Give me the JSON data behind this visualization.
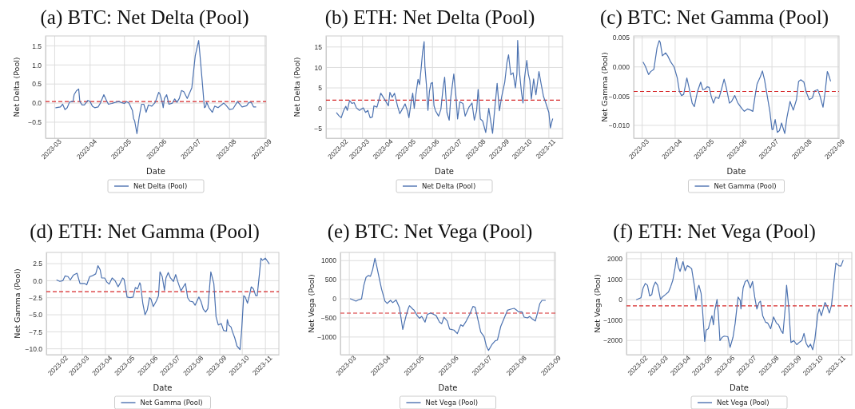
{
  "chart_data": [
    {
      "type": "line",
      "title": "(a) BTC: Net Delta (Pool)",
      "xlabel": "Date",
      "ylabel": "Net Delta (Pool)",
      "grid": true,
      "legend": "bottom",
      "xlim": [
        "2023-02-21",
        "2023-09-02"
      ],
      "ylim": [
        -0.92,
        1.76
      ],
      "xticks": [
        {
          "value": "2023-03-01",
          "label": "2023-03"
        },
        {
          "value": "2023-04-01",
          "label": "2023-04"
        },
        {
          "value": "2023-05-01",
          "label": "2023-05"
        },
        {
          "value": "2023-06-01",
          "label": "2023-06"
        },
        {
          "value": "2023-07-01",
          "label": "2023-07"
        },
        {
          "value": "2023-08-01",
          "label": "2023-08"
        },
        {
          "value": "2023-09-01",
          "label": "2023-09"
        }
      ],
      "yticks": [
        {
          "value": -0.5,
          "label": "−0.5"
        },
        {
          "value": 0,
          "label": "0.0"
        },
        {
          "value": 0.5,
          "label": "0.5"
        },
        {
          "value": 1,
          "label": "1.0"
        },
        {
          "value": 1.5,
          "label": "1.5"
        }
      ],
      "ref_lines": [
        {
          "axis": "y",
          "value": 0.04,
          "color": "#d62728",
          "line_style": "dashed"
        }
      ],
      "x": [
        "2023-03-02",
        "2023-03-06",
        "2023-03-08",
        "2023-03-10",
        "2023-03-12",
        "2023-03-14",
        "2023-03-17",
        "2023-03-18",
        "2023-03-20",
        "2023-03-22",
        "2023-03-23",
        "2023-03-25",
        "2023-03-27",
        "2023-03-30",
        "2023-04-01",
        "2023-04-03",
        "2023-04-05",
        "2023-04-08",
        "2023-04-10",
        "2023-04-13",
        "2023-04-15",
        "2023-04-17",
        "2023-04-20",
        "2023-04-23",
        "2023-04-26",
        "2023-04-29",
        "2023-05-01",
        "2023-05-03",
        "2023-05-05",
        "2023-05-08",
        "2023-05-09",
        "2023-05-10",
        "2023-05-12",
        "2023-05-13",
        "2023-05-14",
        "2023-05-16",
        "2023-05-18",
        "2023-05-20",
        "2023-05-22",
        "2023-05-25",
        "2023-05-28",
        "2023-05-31",
        "2023-06-01",
        "2023-06-03",
        "2023-06-04",
        "2023-06-05",
        "2023-06-07",
        "2023-06-09",
        "2023-06-12",
        "2023-06-14",
        "2023-06-16",
        "2023-06-18",
        "2023-06-20",
        "2023-06-22",
        "2023-06-25",
        "2023-06-29",
        "2023-07-02",
        "2023-07-05",
        "2023-07-06",
        "2023-07-08",
        "2023-07-10",
        "2023-07-11",
        "2023-07-12",
        "2023-07-14",
        "2023-07-17",
        "2023-07-19",
        "2023-07-22",
        "2023-07-27",
        "2023-07-29",
        "2023-08-01",
        "2023-08-04",
        "2023-08-08",
        "2023-08-12",
        "2023-08-16",
        "2023-08-18",
        "2023-08-20",
        "2023-08-22",
        "2023-08-24"
      ],
      "series": [
        {
          "name": "Net Delta (Pool)",
          "color": "#4c72b0",
          "values": [
            -0.12,
            -0.1,
            -0.03,
            -0.17,
            -0.12,
            0.03,
            0.04,
            0.22,
            0.32,
            0.37,
            0.04,
            -0.05,
            -0.05,
            0.07,
            0.04,
            -0.08,
            -0.12,
            -0.1,
            0.0,
            0.22,
            0.09,
            -0.03,
            -0.01,
            0.02,
            0.04,
            0.01,
            -0.01,
            0.04,
            0.0,
            -0.19,
            -0.4,
            -0.47,
            -0.8,
            -0.57,
            -0.35,
            -0.03,
            -0.03,
            -0.24,
            -0.05,
            -0.08,
            0.02,
            0.28,
            0.25,
            0.04,
            -0.12,
            0.12,
            0.22,
            -0.03,
            0.0,
            0.11,
            0.02,
            0.12,
            0.33,
            0.3,
            0.12,
            0.4,
            1.24,
            1.64,
            1.31,
            0.61,
            -0.12,
            -0.1,
            0.02,
            -0.12,
            -0.24,
            -0.08,
            -0.12,
            0.0,
            -0.06,
            -0.17,
            -0.15,
            0.04,
            -0.1,
            -0.07,
            0.02,
            0.02,
            -0.1,
            -0.1
          ]
        }
      ]
    },
    {
      "type": "line",
      "title": "(b) ETH: Net Delta (Pool)",
      "xlabel": "Date",
      "ylabel": "Net Delta (Pool)",
      "grid": true,
      "legend": "bottom",
      "xlim": [
        "2023-01-12",
        "2023-11-19"
      ],
      "ylim": [
        -7.3,
        17.7
      ],
      "xticks": [
        {
          "value": "2023-02-01",
          "label": "2023-02"
        },
        {
          "value": "2023-03-01",
          "label": "2023-03"
        },
        {
          "value": "2023-04-01",
          "label": "2023-04"
        },
        {
          "value": "2023-05-01",
          "label": "2023-05"
        },
        {
          "value": "2023-06-01",
          "label": "2023-06"
        },
        {
          "value": "2023-07-01",
          "label": "2023-07"
        },
        {
          "value": "2023-08-01",
          "label": "2023-08"
        },
        {
          "value": "2023-09-01",
          "label": "2023-09"
        },
        {
          "value": "2023-10-01",
          "label": "2023-10"
        },
        {
          "value": "2023-11-01",
          "label": "2023-11"
        }
      ],
      "yticks": [
        {
          "value": -5,
          "label": "−5"
        },
        0,
        5,
        10,
        15
      ],
      "ref_lines": [
        {
          "axis": "y",
          "value": 2.0,
          "color": "#d62728",
          "line_style": "dashed"
        }
      ],
      "x": [
        "2023-01-26",
        "2023-01-29",
        "2023-02-01",
        "2023-02-04",
        "2023-02-07",
        "2023-02-09",
        "2023-02-12",
        "2023-02-15",
        "2023-02-18",
        "2023-02-21",
        "2023-02-25",
        "2023-03-02",
        "2023-03-05",
        "2023-03-08",
        "2023-03-11",
        "2023-03-14",
        "2023-03-16",
        "2023-03-20",
        "2023-03-25",
        "2023-03-31",
        "2023-04-04",
        "2023-04-06",
        "2023-04-09",
        "2023-04-12",
        "2023-04-16",
        "2023-04-19",
        "2023-04-22",
        "2023-04-26",
        "2023-04-29",
        "2023-05-01",
        "2023-05-04",
        "2023-05-06",
        "2023-05-08",
        "2023-05-10",
        "2023-05-13",
        "2023-05-15",
        "2023-05-17",
        "2023-05-19",
        "2023-05-21",
        "2023-05-22",
        "2023-05-24",
        "2023-05-26",
        "2023-05-28",
        "2023-05-30",
        "2023-06-01",
        "2023-06-03",
        "2023-06-05",
        "2023-06-09",
        "2023-06-12",
        "2023-06-15",
        "2023-06-17",
        "2023-06-20",
        "2023-06-23",
        "2023-06-25",
        "2023-06-29",
        "2023-07-02",
        "2023-07-04",
        "2023-07-07",
        "2023-07-11",
        "2023-07-14",
        "2023-07-19",
        "2023-07-23",
        "2023-07-26",
        "2023-07-29",
        "2023-07-31",
        "2023-08-03",
        "2023-08-06",
        "2023-08-10",
        "2023-08-14",
        "2023-08-19",
        "2023-08-21",
        "2023-08-25",
        "2023-08-28",
        "2023-08-31",
        "2023-09-04",
        "2023-09-07",
        "2023-09-09",
        "2023-09-12",
        "2023-09-15",
        "2023-09-18",
        "2023-09-20",
        "2023-09-21",
        "2023-09-23",
        "2023-09-26",
        "2023-09-28",
        "2023-09-30",
        "2023-10-03",
        "2023-10-05",
        "2023-10-07",
        "2023-10-09",
        "2023-10-12",
        "2023-10-15",
        "2023-10-19",
        "2023-10-22",
        "2023-10-25",
        "2023-10-28",
        "2023-11-01",
        "2023-11-03",
        "2023-11-05",
        "2023-11-06"
      ],
      "series": [
        {
          "name": "Net Delta (Pool)",
          "color": "#4c72b0",
          "values": [
            -1.1,
            -1.8,
            -2.3,
            -0.6,
            0.5,
            -0.5,
            1.9,
            1.2,
            1.4,
            0.1,
            -0.5,
            0.1,
            -1.0,
            -0.5,
            -2.3,
            -2.1,
            0.6,
            0.3,
            3.7,
            1.9,
            0.6,
            3.9,
            2.7,
            3.7,
            0.6,
            -1.3,
            -0.3,
            1.1,
            -0.6,
            -2.3,
            1.6,
            3.7,
            0.0,
            3.2,
            7.1,
            5.8,
            9.6,
            13.8,
            16.3,
            10.3,
            5.8,
            -0.5,
            4.2,
            6.1,
            6.3,
            0.6,
            -0.6,
            -1.9,
            -0.3,
            5.1,
            7.6,
            -1.0,
            -2.9,
            2.6,
            8.4,
            2.6,
            -2.6,
            1.6,
            1.2,
            -1.9,
            0.3,
            1.3,
            -2.9,
            -0.6,
            4.6,
            -2.6,
            -3.1,
            -5.9,
            0.0,
            -6.1,
            -1.9,
            6.1,
            -0.6,
            2.9,
            6.4,
            11.3,
            13.1,
            8.2,
            8.7,
            5.0,
            8.4,
            16.6,
            9.6,
            3.9,
            1.3,
            7.4,
            11.7,
            8.4,
            6.8,
            2.3,
            7.2,
            3.3,
            9.0,
            5.8,
            2.9,
            1.3,
            -1.0,
            -4.8,
            -3.2,
            -2.6
          ]
        }
      ]
    },
    {
      "type": "line",
      "title": "(c) BTC: Net Gamma (Pool)",
      "xlabel": "Date",
      "ylabel": "Net Gamma (Pool)",
      "grid": true,
      "legend": "bottom",
      "xlim": [
        "2023-02-21",
        "2023-09-02"
      ],
      "ylim": [
        -0.0122,
        0.0053
      ],
      "xticks": [
        {
          "value": "2023-03-01",
          "label": "2023-03"
        },
        {
          "value": "2023-04-01",
          "label": "2023-04"
        },
        {
          "value": "2023-05-01",
          "label": "2023-05"
        },
        {
          "value": "2023-06-01",
          "label": "2023-06"
        },
        {
          "value": "2023-07-01",
          "label": "2023-07"
        },
        {
          "value": "2023-08-01",
          "label": "2023-08"
        },
        {
          "value": "2023-09-01",
          "label": "2023-09"
        }
      ],
      "yticks": [
        {
          "value": -0.01,
          "label": "−0.010"
        },
        {
          "value": -0.005,
          "label": "−0.005"
        },
        {
          "value": 0,
          "label": "0.000"
        },
        0.005
      ],
      "ref_lines": [
        {
          "axis": "y",
          "value": -0.0042,
          "color": "#d62728",
          "line_style": "dashed"
        }
      ],
      "x": [
        "2023-03-02",
        "2023-03-04",
        "2023-03-07",
        "2023-03-09",
        "2023-03-12",
        "2023-03-15",
        "2023-03-17",
        "2023-03-18",
        "2023-03-20",
        "2023-03-23",
        "2023-03-25",
        "2023-03-28",
        "2023-03-31",
        "2023-04-03",
        "2023-04-05",
        "2023-04-07",
        "2023-04-09",
        "2023-04-12",
        "2023-04-14",
        "2023-04-17",
        "2023-04-19",
        "2023-04-22",
        "2023-04-25",
        "2023-04-27",
        "2023-04-29",
        "2023-05-01",
        "2023-05-03",
        "2023-05-05",
        "2023-05-07",
        "2023-05-09",
        "2023-05-12",
        "2023-05-14",
        "2023-05-17",
        "2023-05-19",
        "2023-05-22",
        "2023-05-24",
        "2023-05-27",
        "2023-05-30",
        "2023-06-03",
        "2023-06-05",
        "2023-06-08",
        "2023-06-11",
        "2023-06-13",
        "2023-06-15",
        "2023-06-17",
        "2023-06-20",
        "2023-06-22",
        "2023-06-24",
        "2023-06-26",
        "2023-06-29",
        "2023-07-01",
        "2023-07-02",
        "2023-07-04",
        "2023-07-06",
        "2023-07-08",
        "2023-07-10",
        "2023-07-13",
        "2023-07-15",
        "2023-07-18",
        "2023-07-21",
        "2023-07-24",
        "2023-07-26",
        "2023-07-28",
        "2023-07-31",
        "2023-08-02",
        "2023-08-05",
        "2023-08-08",
        "2023-08-10",
        "2023-08-13",
        "2023-08-15",
        "2023-08-18",
        "2023-08-20",
        "2023-08-22",
        "2023-08-23",
        "2023-08-25"
      ],
      "series": [
        {
          "name": "Net Gamma (Pool)",
          "color": "#4c72b0",
          "values": [
            0.0008,
            0.0001,
            -0.0013,
            -0.0008,
            -0.0004,
            0.0033,
            0.0045,
            0.0042,
            0.0019,
            0.0024,
            0.0019,
            0.0008,
            0.0,
            -0.0019,
            -0.0042,
            -0.0049,
            -0.0047,
            -0.0019,
            -0.0035,
            -0.0062,
            -0.0068,
            -0.0042,
            -0.0026,
            -0.0039,
            -0.0038,
            -0.0034,
            -0.0035,
            -0.0051,
            -0.0062,
            -0.0052,
            -0.0054,
            -0.0042,
            -0.0021,
            -0.0035,
            -0.0062,
            -0.0059,
            -0.0049,
            -0.0062,
            -0.0072,
            -0.0076,
            -0.0072,
            -0.0074,
            -0.0076,
            -0.0051,
            -0.0029,
            -0.0017,
            -0.0007,
            -0.0022,
            -0.0044,
            -0.0076,
            -0.0107,
            -0.0107,
            -0.009,
            -0.0112,
            -0.0109,
            -0.0096,
            -0.0114,
            -0.0087,
            -0.0059,
            -0.0074,
            -0.0056,
            -0.0025,
            -0.0022,
            -0.0026,
            -0.0042,
            -0.0056,
            -0.0053,
            -0.0041,
            -0.0039,
            -0.0049,
            -0.0069,
            -0.0042,
            -0.0008,
            -0.0012,
            -0.0024
          ]
        }
      ]
    },
    {
      "type": "line",
      "title": "(d) ETH: Net Gamma (Pool)",
      "xlabel": "Date",
      "ylabel": "Net Gamma (Pool)",
      "grid": true,
      "legend": "bottom",
      "xlim": [
        "2023-01-12",
        "2023-11-19"
      ],
      "ylim": [
        -10.86,
        4.15
      ],
      "xticks": [
        {
          "value": "2023-02-01",
          "label": "2023-02"
        },
        {
          "value": "2023-03-01",
          "label": "2023-03"
        },
        {
          "value": "2023-04-01",
          "label": "2023-04"
        },
        {
          "value": "2023-05-01",
          "label": "2023-05"
        },
        {
          "value": "2023-06-01",
          "label": "2023-06"
        },
        {
          "value": "2023-07-01",
          "label": "2023-07"
        },
        {
          "value": "2023-08-01",
          "label": "2023-08"
        },
        {
          "value": "2023-09-01",
          "label": "2023-09"
        },
        {
          "value": "2023-10-01",
          "label": "2023-10"
        },
        {
          "value": "2023-11-01",
          "label": "2023-11"
        }
      ],
      "yticks": [
        {
          "value": -10,
          "label": "−10.0"
        },
        {
          "value": -7.5,
          "label": "−7.5"
        },
        {
          "value": -5,
          "label": "−5.0"
        },
        {
          "value": -2.5,
          "label": "−2.5"
        },
        {
          "value": 0,
          "label": "0.0"
        },
        2.5
      ],
      "ref_lines": [
        {
          "axis": "y",
          "value": -1.6,
          "color": "#d62728",
          "line_style": "dashed"
        }
      ],
      "x": [
        "2023-01-26",
        "2023-01-30",
        "2023-02-03",
        "2023-02-06",
        "2023-02-10",
        "2023-02-13",
        "2023-02-17",
        "2023-02-22",
        "2023-02-26",
        "2023-03-04",
        "2023-03-07",
        "2023-03-11",
        "2023-03-14",
        "2023-03-19",
        "2023-03-22",
        "2023-03-25",
        "2023-03-27",
        "2023-03-31",
        "2023-04-03",
        "2023-04-06",
        "2023-04-10",
        "2023-04-14",
        "2023-04-18",
        "2023-04-20",
        "2023-04-24",
        "2023-04-26",
        "2023-04-30",
        "2023-05-04",
        "2023-05-08",
        "2023-05-11",
        "2023-05-14",
        "2023-05-17",
        "2023-05-18",
        "2023-05-21",
        "2023-05-24",
        "2023-05-27",
        "2023-05-30",
        "2023-06-01",
        "2023-06-04",
        "2023-06-08",
        "2023-06-11",
        "2023-06-13",
        "2023-06-16",
        "2023-06-19",
        "2023-06-21",
        "2023-06-24",
        "2023-06-27",
        "2023-07-01",
        "2023-07-04",
        "2023-07-07",
        "2023-07-11",
        "2023-07-17",
        "2023-07-20",
        "2023-07-23",
        "2023-07-27",
        "2023-07-30",
        "2023-08-04",
        "2023-08-07",
        "2023-08-10",
        "2023-08-13",
        "2023-08-16",
        "2023-08-20",
        "2023-08-24",
        "2023-08-27",
        "2023-08-30",
        "2023-09-03",
        "2023-09-06",
        "2023-09-10",
        "2023-09-11",
        "2023-09-13",
        "2023-09-16",
        "2023-09-18",
        "2023-09-21",
        "2023-09-24",
        "2023-09-28",
        "2023-09-30",
        "2023-10-03",
        "2023-10-05",
        "2023-10-08",
        "2023-10-11",
        "2023-10-13",
        "2023-10-16",
        "2023-10-19",
        "2023-10-21",
        "2023-10-24",
        "2023-10-26",
        "2023-10-28",
        "2023-11-01",
        "2023-11-06"
      ],
      "series": [
        {
          "name": "Net Gamma (Pool)",
          "color": "#4c72b0",
          "values": [
            0.1,
            -0.1,
            0.0,
            0.7,
            0.6,
            0.1,
            0.8,
            1.1,
            -0.4,
            -0.4,
            -0.6,
            0.6,
            0.7,
            1.0,
            2.2,
            1.6,
            0.4,
            0.4,
            -0.2,
            -0.5,
            0.4,
            0.0,
            -0.9,
            -0.5,
            0.4,
            0.2,
            -2.4,
            -2.5,
            -2.4,
            -1.0,
            -1.2,
            -0.3,
            -0.6,
            -3.3,
            -5.0,
            -4.3,
            -2.5,
            -2.7,
            -3.8,
            -3.0,
            -2.2,
            1.3,
            0.6,
            -1.4,
            0.4,
            1.2,
            0.4,
            -0.1,
            0.9,
            -0.2,
            -1.5,
            -0.4,
            -2.5,
            -3.0,
            -3.1,
            -3.6,
            -2.4,
            -3.1,
            -4.2,
            -4.6,
            -4.1,
            1.3,
            -0.4,
            -5.3,
            -6.5,
            -6.3,
            -7.3,
            -7.4,
            -5.7,
            -6.5,
            -6.8,
            -7.5,
            -8.4,
            -9.6,
            -10.1,
            -7.6,
            -2.2,
            -2.4,
            -3.3,
            -2.0,
            -0.9,
            -1.2,
            -2.2,
            -2.2,
            1.0,
            3.3,
            3.0,
            3.3,
            2.5
          ]
        }
      ]
    },
    {
      "type": "line",
      "title": "(e) BTC: Net Vega (Pool)",
      "xlabel": "Date",
      "ylabel": "Net Vega (Pool)",
      "grid": true,
      "legend": "bottom",
      "xlim": [
        "2023-02-21",
        "2023-09-02"
      ],
      "ylim": [
        -1462,
        1214
      ],
      "xticks": [
        {
          "value": "2023-03-01",
          "label": "2023-03"
        },
        {
          "value": "2023-04-01",
          "label": "2023-04"
        },
        {
          "value": "2023-05-01",
          "label": "2023-05"
        },
        {
          "value": "2023-06-01",
          "label": "2023-06"
        },
        {
          "value": "2023-07-01",
          "label": "2023-07"
        },
        {
          "value": "2023-08-01",
          "label": "2023-08"
        },
        {
          "value": "2023-09-01",
          "label": "2023-09"
        }
      ],
      "yticks": [
        {
          "value": -1000,
          "label": "−1000"
        },
        {
          "value": -500,
          "label": "−500"
        },
        0,
        500,
        1000
      ],
      "ref_lines": [
        {
          "axis": "y",
          "value": -375,
          "color": "#d62728",
          "line_style": "dashed"
        }
      ],
      "x": [
        "2023-03-02",
        "2023-03-07",
        "2023-03-09",
        "2023-03-12",
        "2023-03-14",
        "2023-03-16",
        "2023-03-18",
        "2023-03-20",
        "2023-03-22",
        "2023-03-24",
        "2023-03-25",
        "2023-03-28",
        "2023-03-30",
        "2023-04-02",
        "2023-04-04",
        "2023-04-07",
        "2023-04-09",
        "2023-04-12",
        "2023-04-15",
        "2023-04-17",
        "2023-04-18",
        "2023-04-21",
        "2023-04-23",
        "2023-04-24",
        "2023-04-27",
        "2023-04-28",
        "2023-05-01",
        "2023-05-03",
        "2023-05-05",
        "2023-05-08",
        "2023-05-10",
        "2023-05-13",
        "2023-05-16",
        "2023-05-18",
        "2023-05-21",
        "2023-05-23",
        "2023-05-25",
        "2023-05-28",
        "2023-05-30",
        "2023-06-03",
        "2023-06-06",
        "2023-06-09",
        "2023-06-11",
        "2023-06-14",
        "2023-06-17",
        "2023-06-20",
        "2023-06-22",
        "2023-06-24",
        "2023-06-27",
        "2023-06-30",
        "2023-07-02",
        "2023-07-04",
        "2023-07-07",
        "2023-07-10",
        "2023-07-12",
        "2023-07-15",
        "2023-07-18",
        "2023-07-21",
        "2023-07-24",
        "2023-07-27",
        "2023-07-29",
        "2023-07-31",
        "2023-08-03",
        "2023-08-05",
        "2023-08-08",
        "2023-08-10",
        "2023-08-12",
        "2023-08-15",
        "2023-08-17",
        "2023-08-19",
        "2023-08-21",
        "2023-08-24"
      ],
      "series": [
        {
          "name": "Net Vega (Pool)",
          "color": "#4c72b0",
          "values": [
            0,
            -60,
            -30,
            0,
            350,
            560,
            610,
            590,
            770,
            1060,
            940,
            520,
            250,
            -60,
            -120,
            -40,
            -100,
            -30,
            -230,
            -610,
            -800,
            -440,
            -250,
            -180,
            -270,
            -290,
            -440,
            -510,
            -460,
            -610,
            -410,
            -370,
            -410,
            -440,
            -610,
            -650,
            -480,
            -580,
            -790,
            -820,
            -910,
            -680,
            -720,
            -580,
            -410,
            -200,
            -220,
            -480,
            -870,
            -990,
            -1230,
            -1350,
            -1200,
            -1100,
            -1080,
            -720,
            -510,
            -300,
            -270,
            -250,
            -290,
            -340,
            -340,
            -480,
            -500,
            -460,
            -520,
            -580,
            -370,
            -130,
            -40,
            -40
          ]
        }
      ]
    },
    {
      "type": "line",
      "title": "(f) ETH: Net Vega (Pool)",
      "xlabel": "Date",
      "ylabel": "Net Vega (Pool)",
      "grid": true,
      "legend": "bottom",
      "xlim": [
        "2023-01-12",
        "2023-11-19"
      ],
      "ylim": [
        -2700,
        2310
      ],
      "xticks": [
        {
          "value": "2023-02-01",
          "label": "2023-02"
        },
        {
          "value": "2023-03-01",
          "label": "2023-03"
        },
        {
          "value": "2023-04-01",
          "label": "2023-04"
        },
        {
          "value": "2023-05-01",
          "label": "2023-05"
        },
        {
          "value": "2023-06-01",
          "label": "2023-06"
        },
        {
          "value": "2023-07-01",
          "label": "2023-07"
        },
        {
          "value": "2023-08-01",
          "label": "2023-08"
        },
        {
          "value": "2023-09-01",
          "label": "2023-09"
        },
        {
          "value": "2023-10-01",
          "label": "2023-10"
        },
        {
          "value": "2023-11-01",
          "label": "2023-11"
        }
      ],
      "yticks": [
        {
          "value": -2000,
          "label": "−2000"
        },
        {
          "value": -1000,
          "label": "−1000"
        },
        0,
        1000,
        2000
      ],
      "ref_lines": [
        {
          "axis": "y",
          "value": -310,
          "color": "#d62728",
          "line_style": "dashed"
        }
      ],
      "x": [
        "2023-01-26",
        "2023-02-01",
        "2023-02-04",
        "2023-02-07",
        "2023-02-10",
        "2023-02-13",
        "2023-02-16",
        "2023-02-18",
        "2023-02-21",
        "2023-02-24",
        "2023-02-28",
        "2023-03-03",
        "2023-03-07",
        "2023-03-11",
        "2023-03-14",
        "2023-03-17",
        "2023-03-20",
        "2023-03-22",
        "2023-03-25",
        "2023-03-27",
        "2023-03-31",
        "2023-04-03",
        "2023-04-06",
        "2023-04-09",
        "2023-04-12",
        "2023-04-13",
        "2023-04-16",
        "2023-04-18",
        "2023-04-20",
        "2023-04-22",
        "2023-04-25",
        "2023-04-27",
        "2023-04-30",
        "2023-05-02",
        "2023-05-05",
        "2023-05-07",
        "2023-05-10",
        "2023-05-12",
        "2023-05-14",
        "2023-05-17",
        "2023-05-19",
        "2023-05-21",
        "2023-05-24",
        "2023-05-27",
        "2023-06-01",
        "2023-06-04",
        "2023-06-08",
        "2023-06-11",
        "2023-06-15",
        "2023-06-18",
        "2023-06-19",
        "2023-06-22",
        "2023-06-25",
        "2023-06-28",
        "2023-07-02",
        "2023-07-05",
        "2023-07-08",
        "2023-07-11",
        "2023-07-14",
        "2023-07-16",
        "2023-07-19",
        "2023-07-23",
        "2023-07-26",
        "2023-07-30",
        "2023-08-03",
        "2023-08-07",
        "2023-08-10",
        "2023-08-13",
        "2023-08-16",
        "2023-08-19",
        "2023-08-21",
        "2023-08-24",
        "2023-08-27",
        "2023-08-31",
        "2023-09-04",
        "2023-09-08",
        "2023-09-11",
        "2023-09-14",
        "2023-09-17",
        "2023-09-20",
        "2023-09-23",
        "2023-09-26",
        "2023-09-29",
        "2023-10-03",
        "2023-10-05",
        "2023-10-08",
        "2023-10-13",
        "2023-10-16",
        "2023-10-19",
        "2023-10-22",
        "2023-10-28",
        "2023-11-01",
        "2023-11-04",
        "2023-11-07"
      ],
      "series": [
        {
          "name": "Net Vega (Pool)",
          "color": "#4c72b0",
          "values": [
            0,
            90,
            570,
            790,
            700,
            180,
            250,
            630,
            860,
            700,
            10,
            140,
            250,
            370,
            630,
            950,
            1540,
            2050,
            1560,
            1380,
            1860,
            1410,
            1660,
            1600,
            1510,
            1280,
            630,
            -40,
            500,
            700,
            310,
            -530,
            -2050,
            -1500,
            -1430,
            -1150,
            -790,
            -1240,
            -500,
            10,
            -790,
            -2010,
            -1850,
            -1790,
            -1820,
            -2340,
            -1850,
            -1170,
            120,
            -40,
            -460,
            570,
            890,
            950,
            570,
            890,
            120,
            -460,
            -140,
            -80,
            -790,
            -1110,
            -1150,
            -1430,
            -850,
            -1150,
            -1240,
            -1500,
            -1660,
            -460,
            700,
            -400,
            -2100,
            -2010,
            -2210,
            -2080,
            -2010,
            -1660,
            -2140,
            -2340,
            -2180,
            -2460,
            -1950,
            -720,
            -460,
            -790,
            -140,
            -340,
            -660,
            -270,
            1790,
            1660,
            1640,
            1920
          ]
        }
      ]
    }
  ]
}
